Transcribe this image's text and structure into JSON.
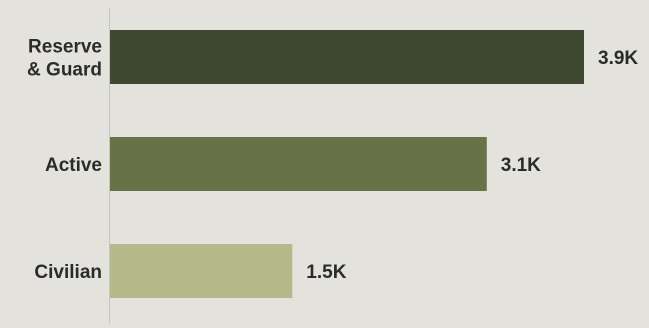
{
  "chart_data": {
    "type": "bar",
    "orientation": "horizontal",
    "categories": [
      [
        "Reserve",
        "& Guard"
      ],
      [
        "Active"
      ],
      [
        "Civilian"
      ]
    ],
    "values": [
      3900,
      3100,
      1500
    ],
    "value_labels": [
      "3.9K",
      "3.1K",
      "1.5K"
    ],
    "colors": [
      "#3f4931",
      "#677246",
      "#b3b989"
    ],
    "axis_color": "#c4c4c0",
    "title": "",
    "xlabel": "",
    "ylabel": "",
    "grid": false,
    "legend": "none"
  }
}
